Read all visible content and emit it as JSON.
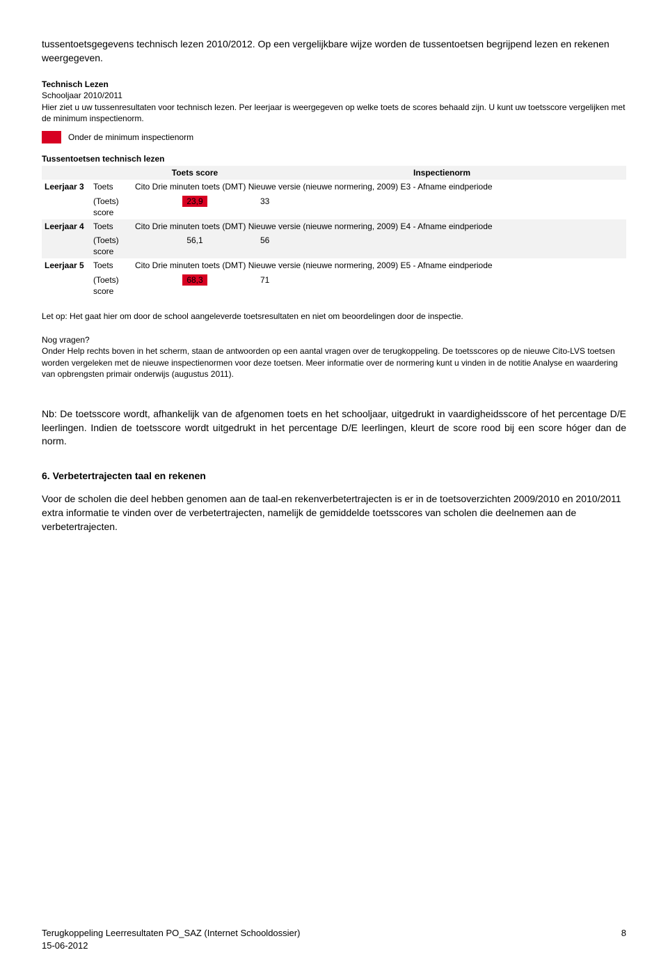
{
  "intro": "tussentoetsgegevens technisch lezen 2010/2012. Op een vergelijkbare wijze worden de tussentoetsen begrijpend lezen en rekenen weergegeven.",
  "report": {
    "title": "Technisch Lezen",
    "schooljaar": "Schooljaar 2010/2011",
    "desc": "Hier ziet u uw tussenresultaten voor technisch lezen. Per leerjaar is weergegeven op welke toets de scores behaald zijn. U kunt uw toetsscore vergelijken met de minimum inspectienorm.",
    "legend_label": "Onder de minimum inspectienorm",
    "legend_color": "#d70022",
    "table_title": "Tussentoetsen technisch lezen",
    "col_score": "Toets score",
    "col_norm": "Inspectienorm",
    "rows": [
      {
        "leerjaar": "Leerjaar 3",
        "metric_toets_label": "Toets",
        "toets_name": "Cito Drie minuten toets (DMT) Nieuwe versie (nieuwe normering, 2009) E3 - Afname eindperiode",
        "metric_score_label": "(Toets) score",
        "score": "23,9",
        "score_red": true,
        "norm": "33"
      },
      {
        "leerjaar": "Leerjaar 4",
        "metric_toets_label": "Toets",
        "toets_name": "Cito Drie minuten toets (DMT) Nieuwe versie (nieuwe normering, 2009) E4 - Afname eindperiode",
        "metric_score_label": "(Toets) score",
        "score": "56,1",
        "score_red": false,
        "norm": "56"
      },
      {
        "leerjaar": "Leerjaar 5",
        "metric_toets_label": "Toets",
        "toets_name": "Cito Drie minuten toets (DMT) Nieuwe versie (nieuwe normering, 2009) E5 - Afname eindperiode",
        "metric_score_label": "(Toets) score",
        "score": "68,3",
        "score_red": true,
        "norm": "71"
      }
    ],
    "letop": "Let op: Het gaat hier om door de school aangeleverde toetsresultaten en niet om beoordelingen door de inspectie.",
    "nog_vragen_title": "Nog vragen?",
    "nog_vragen_body": "Onder Help rechts boven in het scherm, staan de antwoorden op een aantal vragen over de terugkoppeling. De toetsscores op de nieuwe Cito-LVS toetsen worden vergeleken met de nieuwe inspectienormen voor deze toetsen. Meer informatie over de normering kunt u vinden in de notitie Analyse en waardering van opbrengsten primair onderwijs (augustus 2011)."
  },
  "nb_prefix": "Nb:",
  "nb_text": "De toetsscore wordt, afhankelijk van de afgenomen toets en het schooljaar, uitgedrukt in vaardigheidsscore of het percentage D/E leerlingen. Indien de toetsscore wordt uitgedrukt in het percentage D/E leerlingen, kleurt de score rood bij een score hóger dan de norm.",
  "section6_title": "6. Verbetertrajecten taal en rekenen",
  "section6_body": "Voor de scholen die deel hebben genomen aan de taal-en rekenverbetertrajecten is er in de toetsoverzichten 2009/2010 en 2010/2011 extra informatie te vinden over de verbetertrajecten, namelijk de gemiddelde toetsscores van scholen die deelnemen aan de verbetertrajecten.",
  "footer_left_line1": "Terugkoppeling Leerresultaten PO_SAZ (Internet Schooldossier)",
  "footer_left_line2": "15-06-2012",
  "footer_page": "8"
}
